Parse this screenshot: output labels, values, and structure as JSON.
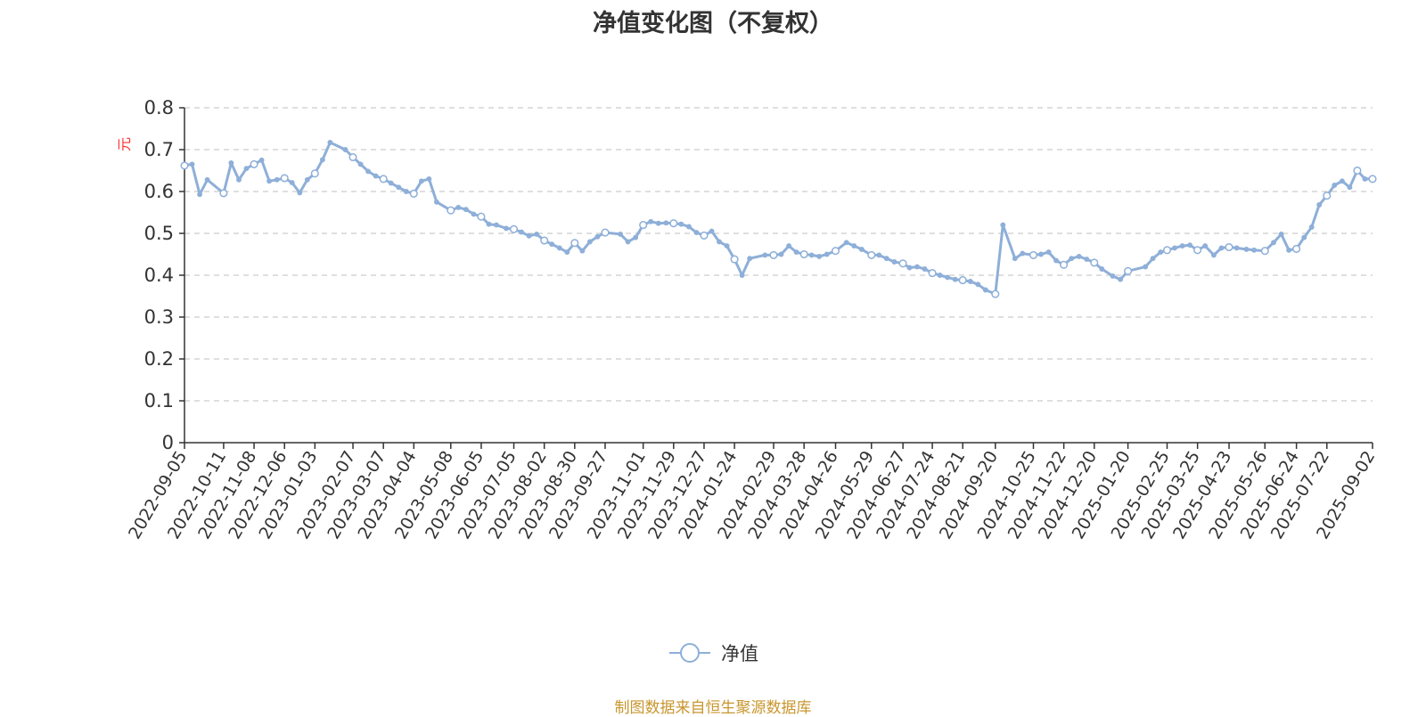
{
  "title": "净值变化图（不复权）",
  "source_note": "制图数据来自恒生聚源数据库",
  "legend": {
    "label": "净值",
    "icon": "circle-line-icon"
  },
  "colors": {
    "series": "#8eafd8",
    "axis": "#333333",
    "grid": "#cccccc",
    "title": "#333333",
    "unit": "#ff3333",
    "source": "#c8962e"
  },
  "chart_data": {
    "type": "line",
    "title": "净值变化图（不复权）",
    "ylabel": "元",
    "ylim": [
      0,
      0.8
    ],
    "yticks": [
      "0",
      "0.1",
      "0.2",
      "0.3",
      "0.4",
      "0.5",
      "0.6",
      "0.7",
      "0.8"
    ],
    "grid": true,
    "legend_position": "bottom-center",
    "x_tick_labels": [
      "2022-09-05",
      "2022-10-11",
      "2022-11-08",
      "2022-12-06",
      "2023-01-03",
      "2023-02-07",
      "2023-03-07",
      "2023-04-04",
      "2023-05-08",
      "2023-06-05",
      "2023-07-05",
      "2023-08-02",
      "2023-08-30",
      "2023-09-27",
      "2023-11-01",
      "2023-11-29",
      "2023-12-27",
      "2024-01-24",
      "2024-02-29",
      "2024-03-28",
      "2024-04-26",
      "2024-05-29",
      "2024-06-27",
      "2024-07-24",
      "2024-08-21",
      "2024-09-20",
      "2024-10-25",
      "2024-11-22",
      "2024-12-20",
      "2025-01-20",
      "2025-02-25",
      "2025-03-25",
      "2025-04-23",
      "2025-05-26",
      "2025-06-24",
      "2025-07-22",
      "2025-09-02"
    ],
    "series": [
      {
        "name": "净值",
        "x": [
          "2022-09-05",
          "2022-09-12",
          "2022-09-19",
          "2022-09-26",
          "2022-10-11",
          "2022-10-18",
          "2022-10-25",
          "2022-11-01",
          "2022-11-08",
          "2022-11-15",
          "2022-11-22",
          "2022-11-29",
          "2022-12-06",
          "2022-12-13",
          "2022-12-20",
          "2022-12-27",
          "2023-01-03",
          "2023-01-10",
          "2023-01-17",
          "2023-01-31",
          "2023-02-07",
          "2023-02-14",
          "2023-02-21",
          "2023-02-28",
          "2023-03-07",
          "2023-03-14",
          "2023-03-21",
          "2023-03-28",
          "2023-04-04",
          "2023-04-11",
          "2023-04-18",
          "2023-04-25",
          "2023-05-08",
          "2023-05-15",
          "2023-05-22",
          "2023-05-29",
          "2023-06-05",
          "2023-06-12",
          "2023-06-19",
          "2023-06-28",
          "2023-07-05",
          "2023-07-12",
          "2023-07-19",
          "2023-07-26",
          "2023-08-02",
          "2023-08-09",
          "2023-08-16",
          "2023-08-23",
          "2023-08-30",
          "2023-09-06",
          "2023-09-13",
          "2023-09-20",
          "2023-09-27",
          "2023-10-11",
          "2023-10-18",
          "2023-10-25",
          "2023-11-01",
          "2023-11-08",
          "2023-11-15",
          "2023-11-22",
          "2023-11-29",
          "2023-12-06",
          "2023-12-13",
          "2023-12-20",
          "2023-12-27",
          "2024-01-03",
          "2024-01-10",
          "2024-01-17",
          "2024-01-24",
          "2024-01-31",
          "2024-02-07",
          "2024-02-21",
          "2024-02-29",
          "2024-03-07",
          "2024-03-14",
          "2024-03-21",
          "2024-03-28",
          "2024-04-04",
          "2024-04-11",
          "2024-04-18",
          "2024-04-26",
          "2024-05-06",
          "2024-05-13",
          "2024-05-20",
          "2024-05-29",
          "2024-06-05",
          "2024-06-12",
          "2024-06-19",
          "2024-06-27",
          "2024-07-03",
          "2024-07-10",
          "2024-07-17",
          "2024-07-24",
          "2024-07-31",
          "2024-08-07",
          "2024-08-14",
          "2024-08-21",
          "2024-08-28",
          "2024-09-04",
          "2024-09-11",
          "2024-09-20",
          "2024-09-27",
          "2024-10-08",
          "2024-10-15",
          "2024-10-25",
          "2024-11-01",
          "2024-11-08",
          "2024-11-15",
          "2024-11-22",
          "2024-11-29",
          "2024-12-06",
          "2024-12-13",
          "2024-12-20",
          "2024-12-27",
          "2025-01-06",
          "2025-01-13",
          "2025-01-20",
          "2025-02-05",
          "2025-02-12",
          "2025-02-19",
          "2025-02-25",
          "2025-03-04",
          "2025-03-11",
          "2025-03-18",
          "2025-03-25",
          "2025-04-01",
          "2025-04-09",
          "2025-04-16",
          "2025-04-23",
          "2025-04-30",
          "2025-05-09",
          "2025-05-16",
          "2025-05-26",
          "2025-06-03",
          "2025-06-10",
          "2025-06-17",
          "2025-06-24",
          "2025-07-01",
          "2025-07-08",
          "2025-07-15",
          "2025-07-22",
          "2025-07-29",
          "2025-08-05",
          "2025-08-12",
          "2025-08-19",
          "2025-08-26",
          "2025-09-02"
        ],
        "values": [
          0.662,
          0.665,
          0.593,
          0.628,
          0.596,
          0.668,
          0.628,
          0.655,
          0.665,
          0.675,
          0.625,
          0.628,
          0.632,
          0.621,
          0.597,
          0.628,
          0.643,
          0.676,
          0.717,
          0.7,
          0.682,
          0.665,
          0.648,
          0.637,
          0.63,
          0.62,
          0.61,
          0.6,
          0.595,
          0.625,
          0.63,
          0.575,
          0.555,
          0.562,
          0.557,
          0.546,
          0.54,
          0.522,
          0.52,
          0.512,
          0.51,
          0.503,
          0.494,
          0.498,
          0.483,
          0.474,
          0.465,
          0.455,
          0.477,
          0.458,
          0.48,
          0.492,
          0.502,
          0.498,
          0.48,
          0.49,
          0.52,
          0.528,
          0.524,
          0.525,
          0.524,
          0.522,
          0.516,
          0.502,
          0.495,
          0.505,
          0.48,
          0.47,
          0.438,
          0.4,
          0.44,
          0.448,
          0.448,
          0.45,
          0.47,
          0.455,
          0.45,
          0.448,
          0.445,
          0.45,
          0.458,
          0.478,
          0.47,
          0.462,
          0.448,
          0.448,
          0.44,
          0.432,
          0.428,
          0.418,
          0.42,
          0.415,
          0.405,
          0.4,
          0.395,
          0.39,
          0.388,
          0.385,
          0.378,
          0.365,
          0.355,
          0.52,
          0.44,
          0.452,
          0.448,
          0.45,
          0.455,
          0.435,
          0.425,
          0.44,
          0.445,
          0.438,
          0.43,
          0.415,
          0.398,
          0.39,
          0.41,
          0.42,
          0.44,
          0.455,
          0.46,
          0.465,
          0.47,
          0.472,
          0.46,
          0.47,
          0.448,
          0.465,
          0.467,
          0.465,
          0.462,
          0.46,
          0.458,
          0.478,
          0.498,
          0.46,
          0.463,
          0.49,
          0.515,
          0.568,
          0.59,
          0.615,
          0.625,
          0.61,
          0.65,
          0.63,
          0.63
        ]
      }
    ]
  }
}
